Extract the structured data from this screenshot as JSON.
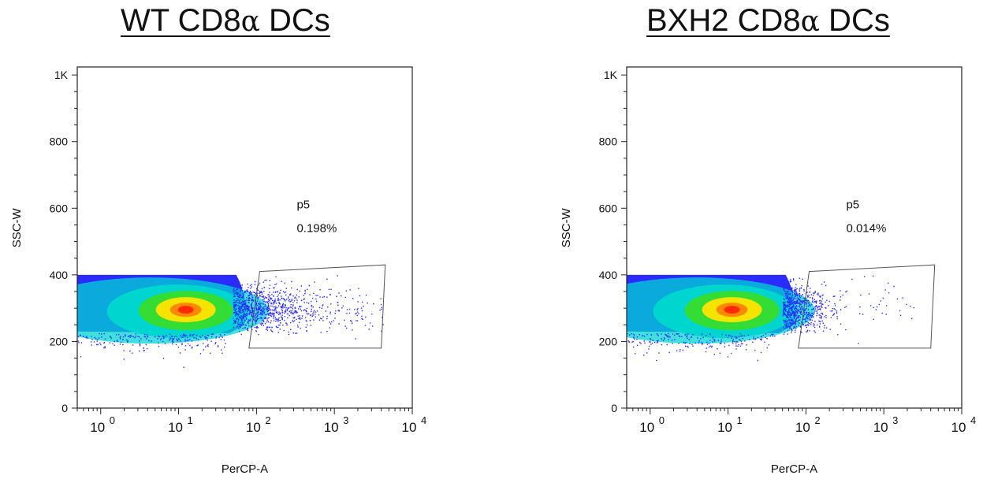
{
  "chart_data": [
    {
      "type": "scatter",
      "title_prefix": "WT CD8",
      "title_greek": "α",
      "title_suffix": " DCs",
      "xlabel": "PerCP-A",
      "ylabel": "SSC-W",
      "x_scale": "log",
      "xlim": [
        0.5,
        10000
      ],
      "ylim": [
        0,
        1024
      ],
      "x_ticks": [
        1,
        10,
        100,
        1000,
        10000
      ],
      "y_tick_labels": [
        {
          "value": 0,
          "label": "0"
        },
        {
          "value": 200,
          "label": "200"
        },
        {
          "value": 400,
          "label": "400"
        },
        {
          "value": 600,
          "label": "600"
        },
        {
          "value": 800,
          "label": "800"
        },
        {
          "value": 1000,
          "label": "1K"
        }
      ],
      "grid": false,
      "density_center": {
        "x": 11,
        "y": 300
      },
      "gate": {
        "name": "p5",
        "percent": "0.198%",
        "polygon": [
          [
            80,
            180
          ],
          [
            4000,
            180
          ],
          [
            4500,
            430
          ],
          [
            110,
            410
          ]
        ]
      },
      "tail_events": 150
    },
    {
      "type": "scatter",
      "title_prefix": "BXH2 CD8",
      "title_greek": "α",
      "title_suffix": " DCs",
      "xlabel": "PerCP-A",
      "ylabel": "SSC-W",
      "x_scale": "log",
      "xlim": [
        0.5,
        10000
      ],
      "ylim": [
        0,
        1024
      ],
      "x_ticks": [
        1,
        10,
        100,
        1000,
        10000
      ],
      "y_tick_labels": [
        {
          "value": 0,
          "label": "0"
        },
        {
          "value": 200,
          "label": "200"
        },
        {
          "value": 400,
          "label": "400"
        },
        {
          "value": 600,
          "label": "600"
        },
        {
          "value": 800,
          "label": "800"
        },
        {
          "value": 1000,
          "label": "1K"
        }
      ],
      "grid": false,
      "density_center": {
        "x": 10,
        "y": 300
      },
      "gate": {
        "name": "p5",
        "percent": "0.014%",
        "polygon": [
          [
            80,
            180
          ],
          [
            4000,
            180
          ],
          [
            4500,
            430
          ],
          [
            110,
            410
          ]
        ]
      },
      "tail_events": 30
    }
  ],
  "colors": {
    "low_density": "#2b2bff",
    "mid_density": "#00d5d0",
    "green": "#33dd33",
    "yellow": "#f7e300",
    "high_density": "#ff2a00",
    "axis": "#222222",
    "gate": "#555555"
  }
}
